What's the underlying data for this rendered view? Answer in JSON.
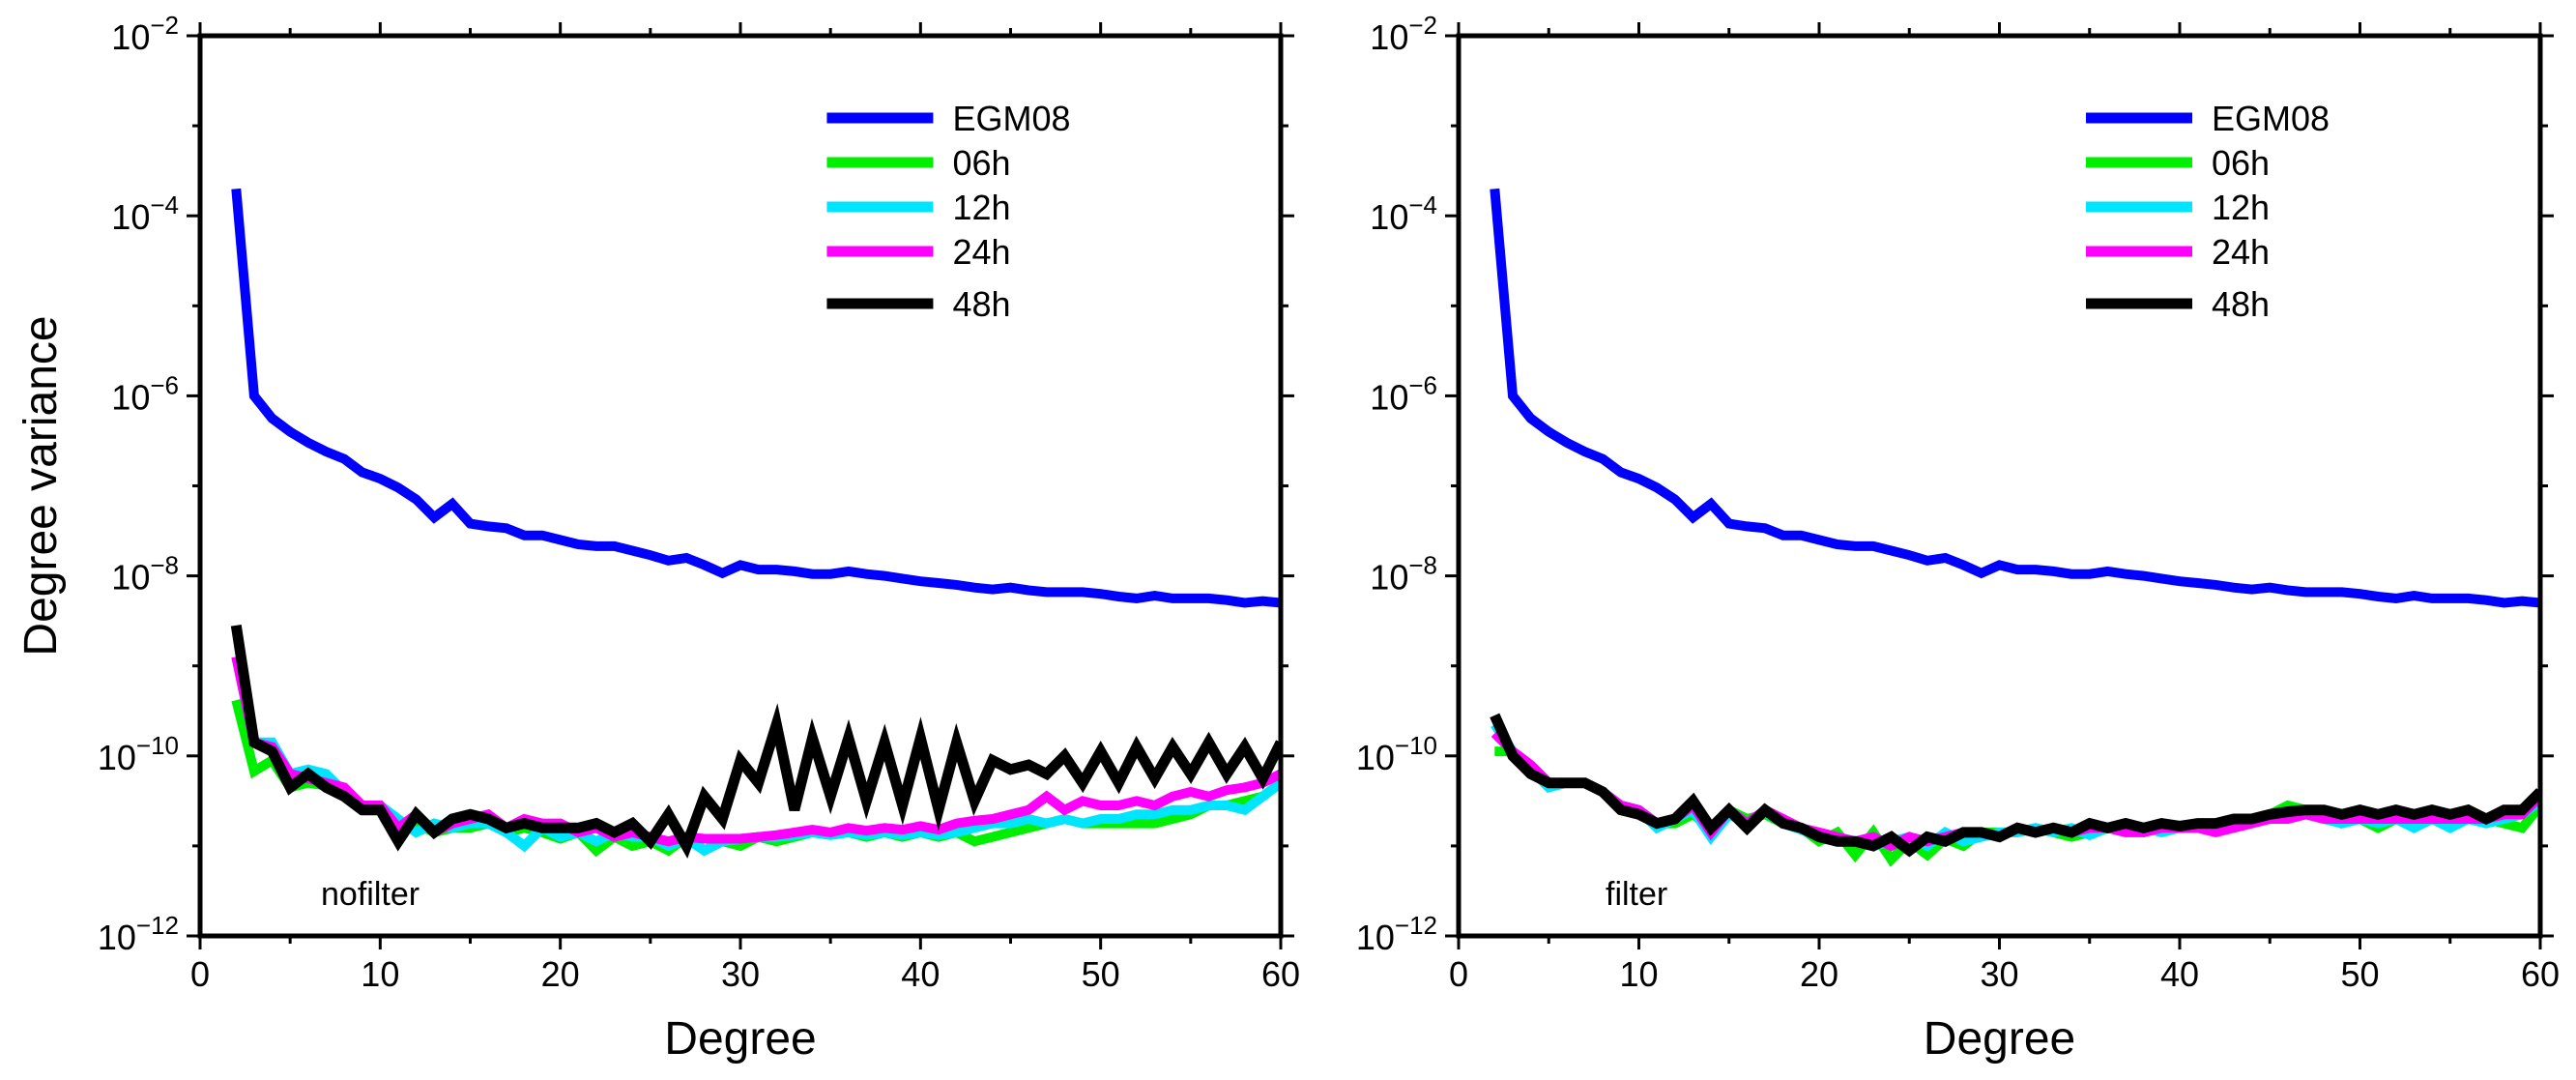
{
  "chart_data": [
    {
      "type": "line",
      "panel_label": "nofilter",
      "xlabel": "Degree",
      "ylabel": "Degree variance",
      "xlim": [
        0,
        60
      ],
      "ylim": [
        1e-12,
        0.01
      ],
      "yscale": "log",
      "x_ticks": [
        0,
        10,
        20,
        30,
        40,
        50,
        60
      ],
      "y_ticks": [
        {
          "exp": -12
        },
        {
          "exp": -10
        },
        {
          "exp": -8
        },
        {
          "exp": -6
        },
        {
          "exp": -4
        },
        {
          "exp": -2
        }
      ],
      "legend_position": "top-right",
      "x": [
        2,
        3,
        4,
        5,
        6,
        7,
        8,
        9,
        10,
        11,
        12,
        13,
        14,
        15,
        16,
        17,
        18,
        19,
        20,
        21,
        22,
        23,
        24,
        25,
        26,
        27,
        28,
        29,
        30,
        31,
        32,
        33,
        34,
        35,
        36,
        37,
        38,
        39,
        40,
        41,
        42,
        43,
        44,
        45,
        46,
        47,
        48,
        49,
        50,
        51,
        52,
        53,
        54,
        55,
        56,
        57,
        58,
        59,
        60
      ],
      "series": [
        {
          "name": "EGM08",
          "color": "#0000ff",
          "log10_values": [
            -3.7,
            -6.0,
            -6.25,
            -6.4,
            -6.52,
            -6.62,
            -6.7,
            -6.85,
            -6.92,
            -7.02,
            -7.15,
            -7.35,
            -7.2,
            -7.42,
            -7.45,
            -7.47,
            -7.55,
            -7.55,
            -7.6,
            -7.65,
            -7.67,
            -7.67,
            -7.72,
            -7.77,
            -7.83,
            -7.8,
            -7.88,
            -7.97,
            -7.88,
            -7.93,
            -7.93,
            -7.95,
            -7.98,
            -7.98,
            -7.95,
            -7.98,
            -8.0,
            -8.03,
            -8.06,
            -8.08,
            -8.1,
            -8.13,
            -8.15,
            -8.13,
            -8.16,
            -8.18,
            -8.18,
            -8.18,
            -8.2,
            -8.23,
            -8.25,
            -8.22,
            -8.25,
            -8.25,
            -8.25,
            -8.27,
            -8.3,
            -8.28,
            -8.3
          ]
        },
        {
          "name": "06h",
          "color": "#00ee00",
          "log10_values": [
            -9.38,
            -10.17,
            -10.05,
            -10.35,
            -10.3,
            -10.33,
            -10.42,
            -10.58,
            -10.6,
            -10.8,
            -10.75,
            -10.85,
            -10.8,
            -10.8,
            -10.75,
            -10.85,
            -10.8,
            -10.85,
            -10.92,
            -10.85,
            -11.05,
            -10.9,
            -11.0,
            -10.95,
            -11.05,
            -10.9,
            -11.05,
            -10.95,
            -11.0,
            -10.9,
            -10.95,
            -10.9,
            -10.85,
            -10.88,
            -10.85,
            -10.9,
            -10.85,
            -10.9,
            -10.85,
            -10.9,
            -10.85,
            -10.95,
            -10.9,
            -10.85,
            -10.8,
            -10.75,
            -10.7,
            -10.75,
            -10.75,
            -10.75,
            -10.75,
            -10.75,
            -10.7,
            -10.65,
            -10.55,
            -10.55,
            -10.5,
            -10.45,
            -10.3
          ]
        },
        {
          "name": "12h",
          "color": "#00e5ff",
          "log10_values": [
            -8.9,
            -9.85,
            -9.85,
            -10.2,
            -10.15,
            -10.2,
            -10.4,
            -10.55,
            -10.55,
            -10.7,
            -10.85,
            -10.75,
            -10.8,
            -10.75,
            -10.75,
            -10.85,
            -11.0,
            -10.8,
            -10.9,
            -10.85,
            -10.95,
            -10.85,
            -10.9,
            -10.9,
            -11.0,
            -10.92,
            -11.05,
            -10.95,
            -10.92,
            -10.9,
            -10.9,
            -10.88,
            -10.85,
            -10.88,
            -10.85,
            -10.88,
            -10.85,
            -10.88,
            -10.85,
            -10.88,
            -10.85,
            -10.8,
            -10.75,
            -10.75,
            -10.7,
            -10.75,
            -10.7,
            -10.75,
            -10.7,
            -10.7,
            -10.65,
            -10.65,
            -10.6,
            -10.6,
            -10.55,
            -10.55,
            -10.6,
            -10.45,
            -10.3
          ]
        },
        {
          "name": "24h",
          "color": "#ff00ff",
          "log10_values": [
            -8.9,
            -9.85,
            -9.9,
            -10.2,
            -10.25,
            -10.3,
            -10.35,
            -10.55,
            -10.55,
            -10.8,
            -10.65,
            -10.85,
            -10.75,
            -10.7,
            -10.65,
            -10.8,
            -10.7,
            -10.75,
            -10.75,
            -10.85,
            -10.8,
            -10.9,
            -10.85,
            -10.9,
            -10.95,
            -10.9,
            -10.92,
            -10.92,
            -10.92,
            -10.9,
            -10.88,
            -10.85,
            -10.82,
            -10.85,
            -10.8,
            -10.83,
            -10.8,
            -10.82,
            -10.78,
            -10.82,
            -10.75,
            -10.72,
            -10.7,
            -10.65,
            -10.6,
            -10.45,
            -10.6,
            -10.5,
            -10.55,
            -10.55,
            -10.5,
            -10.55,
            -10.45,
            -10.4,
            -10.45,
            -10.38,
            -10.35,
            -10.3,
            -10.2
          ]
        },
        {
          "name": "48h",
          "color": "#000000",
          "log10_values": [
            -8.55,
            -9.85,
            -9.95,
            -10.35,
            -10.2,
            -10.35,
            -10.45,
            -10.6,
            -10.6,
            -10.95,
            -10.65,
            -10.85,
            -10.7,
            -10.65,
            -10.7,
            -10.8,
            -10.75,
            -10.8,
            -10.8,
            -10.8,
            -10.75,
            -10.85,
            -10.75,
            -10.95,
            -10.65,
            -11.0,
            -10.45,
            -10.7,
            -10.05,
            -10.3,
            -9.65,
            -10.6,
            -9.8,
            -10.45,
            -9.8,
            -10.5,
            -9.85,
            -10.55,
            -9.8,
            -10.6,
            -9.85,
            -10.5,
            -10.05,
            -10.15,
            -10.1,
            -10.2,
            -10.0,
            -10.3,
            -9.95,
            -10.3,
            -9.9,
            -10.25,
            -9.9,
            -10.2,
            -9.85,
            -10.2,
            -9.9,
            -10.25,
            -9.85
          ]
        }
      ]
    },
    {
      "type": "line",
      "panel_label": "filter",
      "xlabel": "Degree",
      "ylabel": "",
      "xlim": [
        0,
        60
      ],
      "ylim": [
        1e-12,
        0.01
      ],
      "yscale": "log",
      "x_ticks": [
        0,
        10,
        20,
        30,
        40,
        50,
        60
      ],
      "y_ticks": [
        {
          "exp": -12
        },
        {
          "exp": -10
        },
        {
          "exp": -8
        },
        {
          "exp": -6
        },
        {
          "exp": -4
        },
        {
          "exp": -2
        }
      ],
      "legend_position": "top-right",
      "x": [
        2,
        3,
        4,
        5,
        6,
        7,
        8,
        9,
        10,
        11,
        12,
        13,
        14,
        15,
        16,
        17,
        18,
        19,
        20,
        21,
        22,
        23,
        24,
        25,
        26,
        27,
        28,
        29,
        30,
        31,
        32,
        33,
        34,
        35,
        36,
        37,
        38,
        39,
        40,
        41,
        42,
        43,
        44,
        45,
        46,
        47,
        48,
        49,
        50,
        51,
        52,
        53,
        54,
        55,
        56,
        57,
        58,
        59,
        60
      ],
      "series": [
        {
          "name": "EGM08",
          "color": "#0000ff",
          "log10_values": [
            -3.7,
            -6.0,
            -6.25,
            -6.4,
            -6.52,
            -6.62,
            -6.7,
            -6.85,
            -6.92,
            -7.02,
            -7.15,
            -7.35,
            -7.2,
            -7.42,
            -7.45,
            -7.47,
            -7.55,
            -7.55,
            -7.6,
            -7.65,
            -7.67,
            -7.67,
            -7.72,
            -7.77,
            -7.83,
            -7.8,
            -7.88,
            -7.97,
            -7.88,
            -7.93,
            -7.93,
            -7.95,
            -7.98,
            -7.98,
            -7.95,
            -7.98,
            -8.0,
            -8.03,
            -8.06,
            -8.08,
            -8.1,
            -8.13,
            -8.15,
            -8.13,
            -8.16,
            -8.18,
            -8.18,
            -8.18,
            -8.2,
            -8.23,
            -8.25,
            -8.22,
            -8.25,
            -8.25,
            -8.25,
            -8.27,
            -8.3,
            -8.28,
            -8.3
          ]
        },
        {
          "name": "06h",
          "color": "#00ee00",
          "log10_values": [
            -9.95,
            -9.95,
            -10.15,
            -10.3,
            -10.3,
            -10.3,
            -10.4,
            -10.55,
            -10.6,
            -10.75,
            -10.75,
            -10.65,
            -10.8,
            -10.6,
            -10.7,
            -10.65,
            -10.75,
            -10.8,
            -10.95,
            -10.85,
            -11.1,
            -10.85,
            -11.15,
            -10.95,
            -11.1,
            -10.92,
            -11.0,
            -10.85,
            -10.85,
            -10.85,
            -10.8,
            -10.85,
            -10.9,
            -10.85,
            -10.8,
            -10.8,
            -10.85,
            -10.8,
            -10.8,
            -10.8,
            -10.75,
            -10.75,
            -10.7,
            -10.65,
            -10.55,
            -10.6,
            -10.6,
            -10.75,
            -10.7,
            -10.8,
            -10.7,
            -10.75,
            -10.7,
            -10.75,
            -10.7,
            -10.7,
            -10.75,
            -10.8,
            -10.55
          ]
        },
        {
          "name": "12h",
          "color": "#00e5ff",
          "log10_values": [
            -9.65,
            -9.95,
            -10.15,
            -10.35,
            -10.3,
            -10.3,
            -10.4,
            -10.55,
            -10.6,
            -10.8,
            -10.7,
            -10.6,
            -10.9,
            -10.65,
            -10.75,
            -10.62,
            -10.75,
            -10.82,
            -10.9,
            -10.9,
            -10.95,
            -11.0,
            -10.95,
            -10.9,
            -11.0,
            -10.85,
            -10.95,
            -10.9,
            -10.85,
            -10.85,
            -10.8,
            -10.85,
            -10.8,
            -10.88,
            -10.8,
            -10.85,
            -10.8,
            -10.85,
            -10.8,
            -10.8,
            -10.8,
            -10.75,
            -10.75,
            -10.65,
            -10.7,
            -10.65,
            -10.7,
            -10.75,
            -10.7,
            -10.75,
            -10.7,
            -10.8,
            -10.7,
            -10.8,
            -10.7,
            -10.75,
            -10.7,
            -10.65,
            -10.5
          ]
        },
        {
          "name": "24h",
          "color": "#ff00ff",
          "log10_values": [
            -9.75,
            -9.95,
            -10.1,
            -10.3,
            -10.3,
            -10.3,
            -10.4,
            -10.55,
            -10.6,
            -10.75,
            -10.7,
            -10.55,
            -10.85,
            -10.6,
            -10.75,
            -10.6,
            -10.7,
            -10.8,
            -10.85,
            -10.9,
            -10.95,
            -10.9,
            -11.0,
            -10.9,
            -10.95,
            -10.9,
            -10.85,
            -10.85,
            -10.9,
            -10.8,
            -10.85,
            -10.8,
            -10.85,
            -10.8,
            -10.8,
            -10.85,
            -10.85,
            -10.8,
            -10.8,
            -10.8,
            -10.85,
            -10.8,
            -10.75,
            -10.7,
            -10.7,
            -10.65,
            -10.7,
            -10.7,
            -10.7,
            -10.7,
            -10.7,
            -10.7,
            -10.7,
            -10.7,
            -10.7,
            -10.7,
            -10.65,
            -10.65,
            -10.45
          ]
        },
        {
          "name": "48h",
          "color": "#000000",
          "log10_values": [
            -9.55,
            -10.0,
            -10.2,
            -10.3,
            -10.3,
            -10.3,
            -10.4,
            -10.6,
            -10.65,
            -10.75,
            -10.7,
            -10.5,
            -10.8,
            -10.6,
            -10.8,
            -10.6,
            -10.75,
            -10.8,
            -10.9,
            -10.95,
            -10.95,
            -11.0,
            -10.9,
            -11.05,
            -10.9,
            -10.95,
            -10.85,
            -10.85,
            -10.9,
            -10.8,
            -10.85,
            -10.8,
            -10.85,
            -10.75,
            -10.8,
            -10.75,
            -10.8,
            -10.75,
            -10.78,
            -10.75,
            -10.75,
            -10.7,
            -10.7,
            -10.65,
            -10.62,
            -10.6,
            -10.6,
            -10.65,
            -10.6,
            -10.65,
            -10.6,
            -10.65,
            -10.6,
            -10.65,
            -10.6,
            -10.7,
            -10.6,
            -10.6,
            -10.4
          ]
        }
      ]
    }
  ]
}
